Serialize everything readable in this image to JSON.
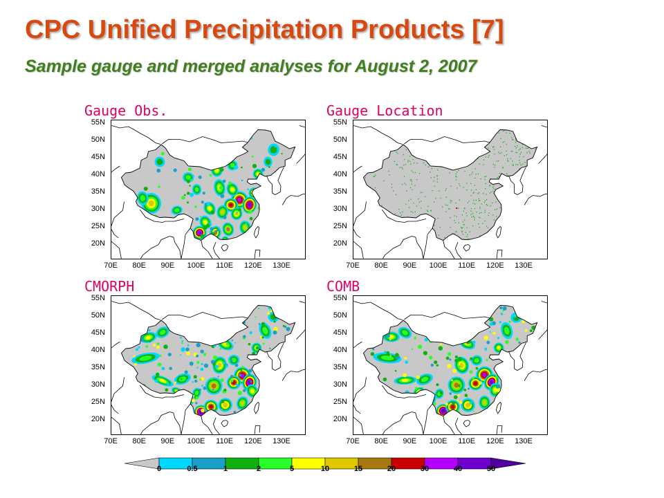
{
  "title": "CPC Unified Precipitation Products [7]",
  "subtitle": "Sample gauge and merged analyses for August 2, 2007",
  "panels": [
    {
      "title": "Gauge Obs.",
      "mode": "gauge"
    },
    {
      "title": "Gauge Location",
      "mode": "location"
    },
    {
      "title": "CMORPH",
      "mode": "cmorph"
    },
    {
      "title": "COMB",
      "mode": "comb"
    }
  ],
  "axes": {
    "lat_labels": [
      "55N",
      "50N",
      "45N",
      "40N",
      "35N",
      "30N",
      "25N",
      "20N"
    ],
    "lon_labels": [
      "70E",
      "80E",
      "90E",
      "100E",
      "110E",
      "120E",
      "130E"
    ]
  },
  "colorbar": {
    "labels": [
      "0",
      "0.5",
      "1",
      "2",
      "5",
      "10",
      "15",
      "20",
      "30",
      "40",
      "50"
    ],
    "colors": [
      "#c8c8c8",
      "#00d7ff",
      "#18a0c8",
      "#10b010",
      "#28ff28",
      "#ffff00",
      "#e0c800",
      "#a87810",
      "#c80000",
      "#b400ff",
      "#7000d0",
      "#5000a0"
    ]
  }
}
